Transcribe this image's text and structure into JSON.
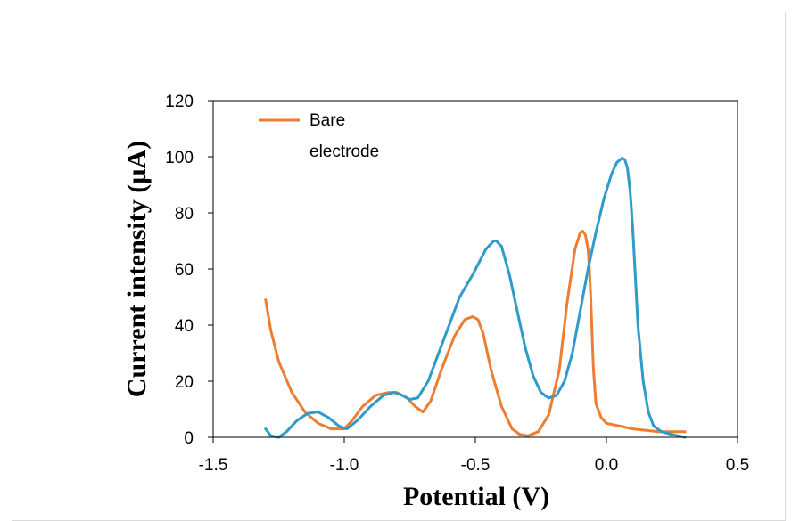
{
  "chart_data": {
    "type": "line",
    "xlabel": "Potential (V)",
    "ylabel": "Current intensity (µA)",
    "xlim": [
      -1.5,
      0.5
    ],
    "ylim": [
      0,
      120
    ],
    "xticks": [
      "-1.5",
      "-1.0",
      "-0.5",
      "0.0",
      "0.5"
    ],
    "yticks": [
      "0",
      "20",
      "40",
      "60",
      "80",
      "100",
      "120"
    ],
    "grid": false,
    "legend_position": "top-left",
    "series": [
      {
        "name": "Bare electrode",
        "color": "#ED7D31",
        "x": [
          -1.3,
          -1.28,
          -1.25,
          -1.2,
          -1.15,
          -1.1,
          -1.05,
          -1.0,
          -0.97,
          -0.93,
          -0.88,
          -0.83,
          -0.8,
          -0.76,
          -0.73,
          -0.7,
          -0.67,
          -0.63,
          -0.58,
          -0.54,
          -0.51,
          -0.49,
          -0.47,
          -0.44,
          -0.4,
          -0.36,
          -0.33,
          -0.3,
          -0.26,
          -0.22,
          -0.18,
          -0.15,
          -0.12,
          -0.1,
          -0.09,
          -0.08,
          -0.07,
          -0.065,
          -0.06,
          -0.055,
          -0.05,
          -0.04,
          -0.02,
          0.0,
          0.05,
          0.1,
          0.2,
          0.3
        ],
        "values": [
          49,
          38,
          27,
          16,
          9,
          5,
          3,
          3,
          6,
          11,
          15,
          16,
          16,
          14,
          11,
          9,
          13,
          24,
          36,
          42,
          43,
          42,
          37,
          24,
          11,
          3,
          1,
          0.5,
          2,
          8,
          24,
          48,
          67,
          73,
          73.5,
          72,
          67,
          60,
          50,
          38,
          25,
          12,
          7,
          5,
          4,
          3,
          2,
          2
        ]
      },
      {
        "name": "",
        "color": "#2E9BCB",
        "x": [
          -1.3,
          -1.28,
          -1.25,
          -1.22,
          -1.18,
          -1.14,
          -1.1,
          -1.06,
          -1.02,
          -0.99,
          -0.95,
          -0.9,
          -0.85,
          -0.81,
          -0.78,
          -0.75,
          -0.72,
          -0.68,
          -0.62,
          -0.56,
          -0.51,
          -0.46,
          -0.43,
          -0.42,
          -0.4,
          -0.37,
          -0.34,
          -0.31,
          -0.28,
          -0.25,
          -0.22,
          -0.19,
          -0.16,
          -0.13,
          -0.1,
          -0.07,
          -0.04,
          -0.01,
          0.02,
          0.04,
          0.06,
          0.07,
          0.08,
          0.09,
          0.1,
          0.11,
          0.12,
          0.14,
          0.16,
          0.18,
          0.21,
          0.25,
          0.3
        ],
        "values": [
          3,
          0.5,
          0,
          2,
          6,
          8.5,
          9,
          7,
          4,
          3,
          6,
          11,
          15,
          16,
          15,
          13.5,
          14,
          20,
          35,
          50,
          58,
          67,
          70,
          70,
          68,
          58,
          45,
          32,
          22,
          16,
          14,
          15,
          20,
          30,
          45,
          60,
          73,
          85,
          94,
          98,
          99.5,
          99,
          96,
          88,
          75,
          58,
          40,
          20,
          9,
          4,
          2,
          1,
          0
        ]
      }
    ]
  }
}
